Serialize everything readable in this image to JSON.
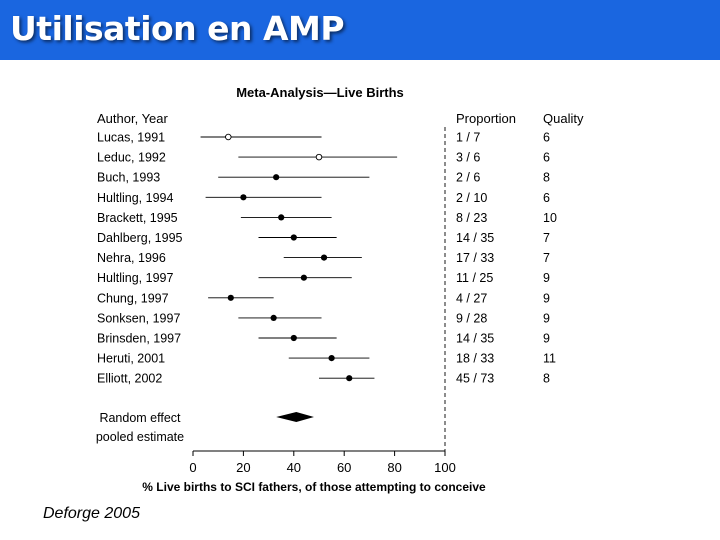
{
  "slide": {
    "title": "Utilisation en AMP",
    "credit": "Deforge 2005",
    "title_bar_color": "#1a66e0"
  },
  "chart_data": {
    "type": "forest",
    "title": "Meta-Analysis—Live Births",
    "column_headers": {
      "study": "Author,  Year",
      "proportion": "Proportion",
      "quality": "Quality"
    },
    "xlabel": "% Live births to SCI fathers, of those attempting to conceive",
    "xlim": [
      0,
      100
    ],
    "xticks": [
      0,
      20,
      40,
      60,
      80,
      100
    ],
    "reference_line_at": 100,
    "studies": [
      {
        "label": "Lucas, 1991",
        "estimate": 14,
        "ci": [
          3,
          51
        ],
        "proportion": "1 / 7",
        "quality": "6",
        "marker": "open"
      },
      {
        "label": "Leduc, 1992",
        "estimate": 50,
        "ci": [
          18,
          81
        ],
        "proportion": "3 / 6",
        "quality": "6",
        "marker": "open"
      },
      {
        "label": "Buch, 1993",
        "estimate": 33,
        "ci": [
          10,
          70
        ],
        "proportion": "2 / 6",
        "quality": "8",
        "marker": "filled"
      },
      {
        "label": "Hultling, 1994",
        "estimate": 20,
        "ci": [
          5,
          51
        ],
        "proportion": "2 / 10",
        "quality": "6",
        "marker": "filled"
      },
      {
        "label": "Brackett, 1995",
        "estimate": 35,
        "ci": [
          19,
          55
        ],
        "proportion": "8 / 23",
        "quality": "10",
        "marker": "filled"
      },
      {
        "label": "Dahlberg, 1995",
        "estimate": 40,
        "ci": [
          26,
          57
        ],
        "proportion": "14 / 35",
        "quality": "7",
        "marker": "filled"
      },
      {
        "label": "Nehra, 1996",
        "estimate": 52,
        "ci": [
          36,
          67
        ],
        "proportion": "17 / 33",
        "quality": "7",
        "marker": "filled"
      },
      {
        "label": "Hultling, 1997",
        "estimate": 44,
        "ci": [
          26,
          63
        ],
        "proportion": "11 / 25",
        "quality": "9",
        "marker": "filled"
      },
      {
        "label": "Chung, 1997",
        "estimate": 15,
        "ci": [
          6,
          32
        ],
        "proportion": "4 / 27",
        "quality": "9",
        "marker": "filled"
      },
      {
        "label": "Sonksen, 1997",
        "estimate": 32,
        "ci": [
          18,
          51
        ],
        "proportion": "9 / 28",
        "quality": "9",
        "marker": "filled"
      },
      {
        "label": "Brinsden, 1997",
        "estimate": 40,
        "ci": [
          26,
          57
        ],
        "proportion": "14 / 35",
        "quality": "9",
        "marker": "filled"
      },
      {
        "label": "Heruti,  2001",
        "estimate": 55,
        "ci": [
          38,
          70
        ],
        "proportion": "18 / 33",
        "quality": "11",
        "marker": "filled"
      },
      {
        "label": "Elliott, 2002",
        "estimate": 62,
        "ci": [
          50,
          72
        ],
        "proportion": "45 / 73",
        "quality": "8",
        "marker": "filled"
      }
    ],
    "pooled": {
      "label_lines": [
        "Random effect",
        "pooled estimate"
      ],
      "estimate": 41,
      "ci": [
        33,
        48
      ]
    }
  }
}
